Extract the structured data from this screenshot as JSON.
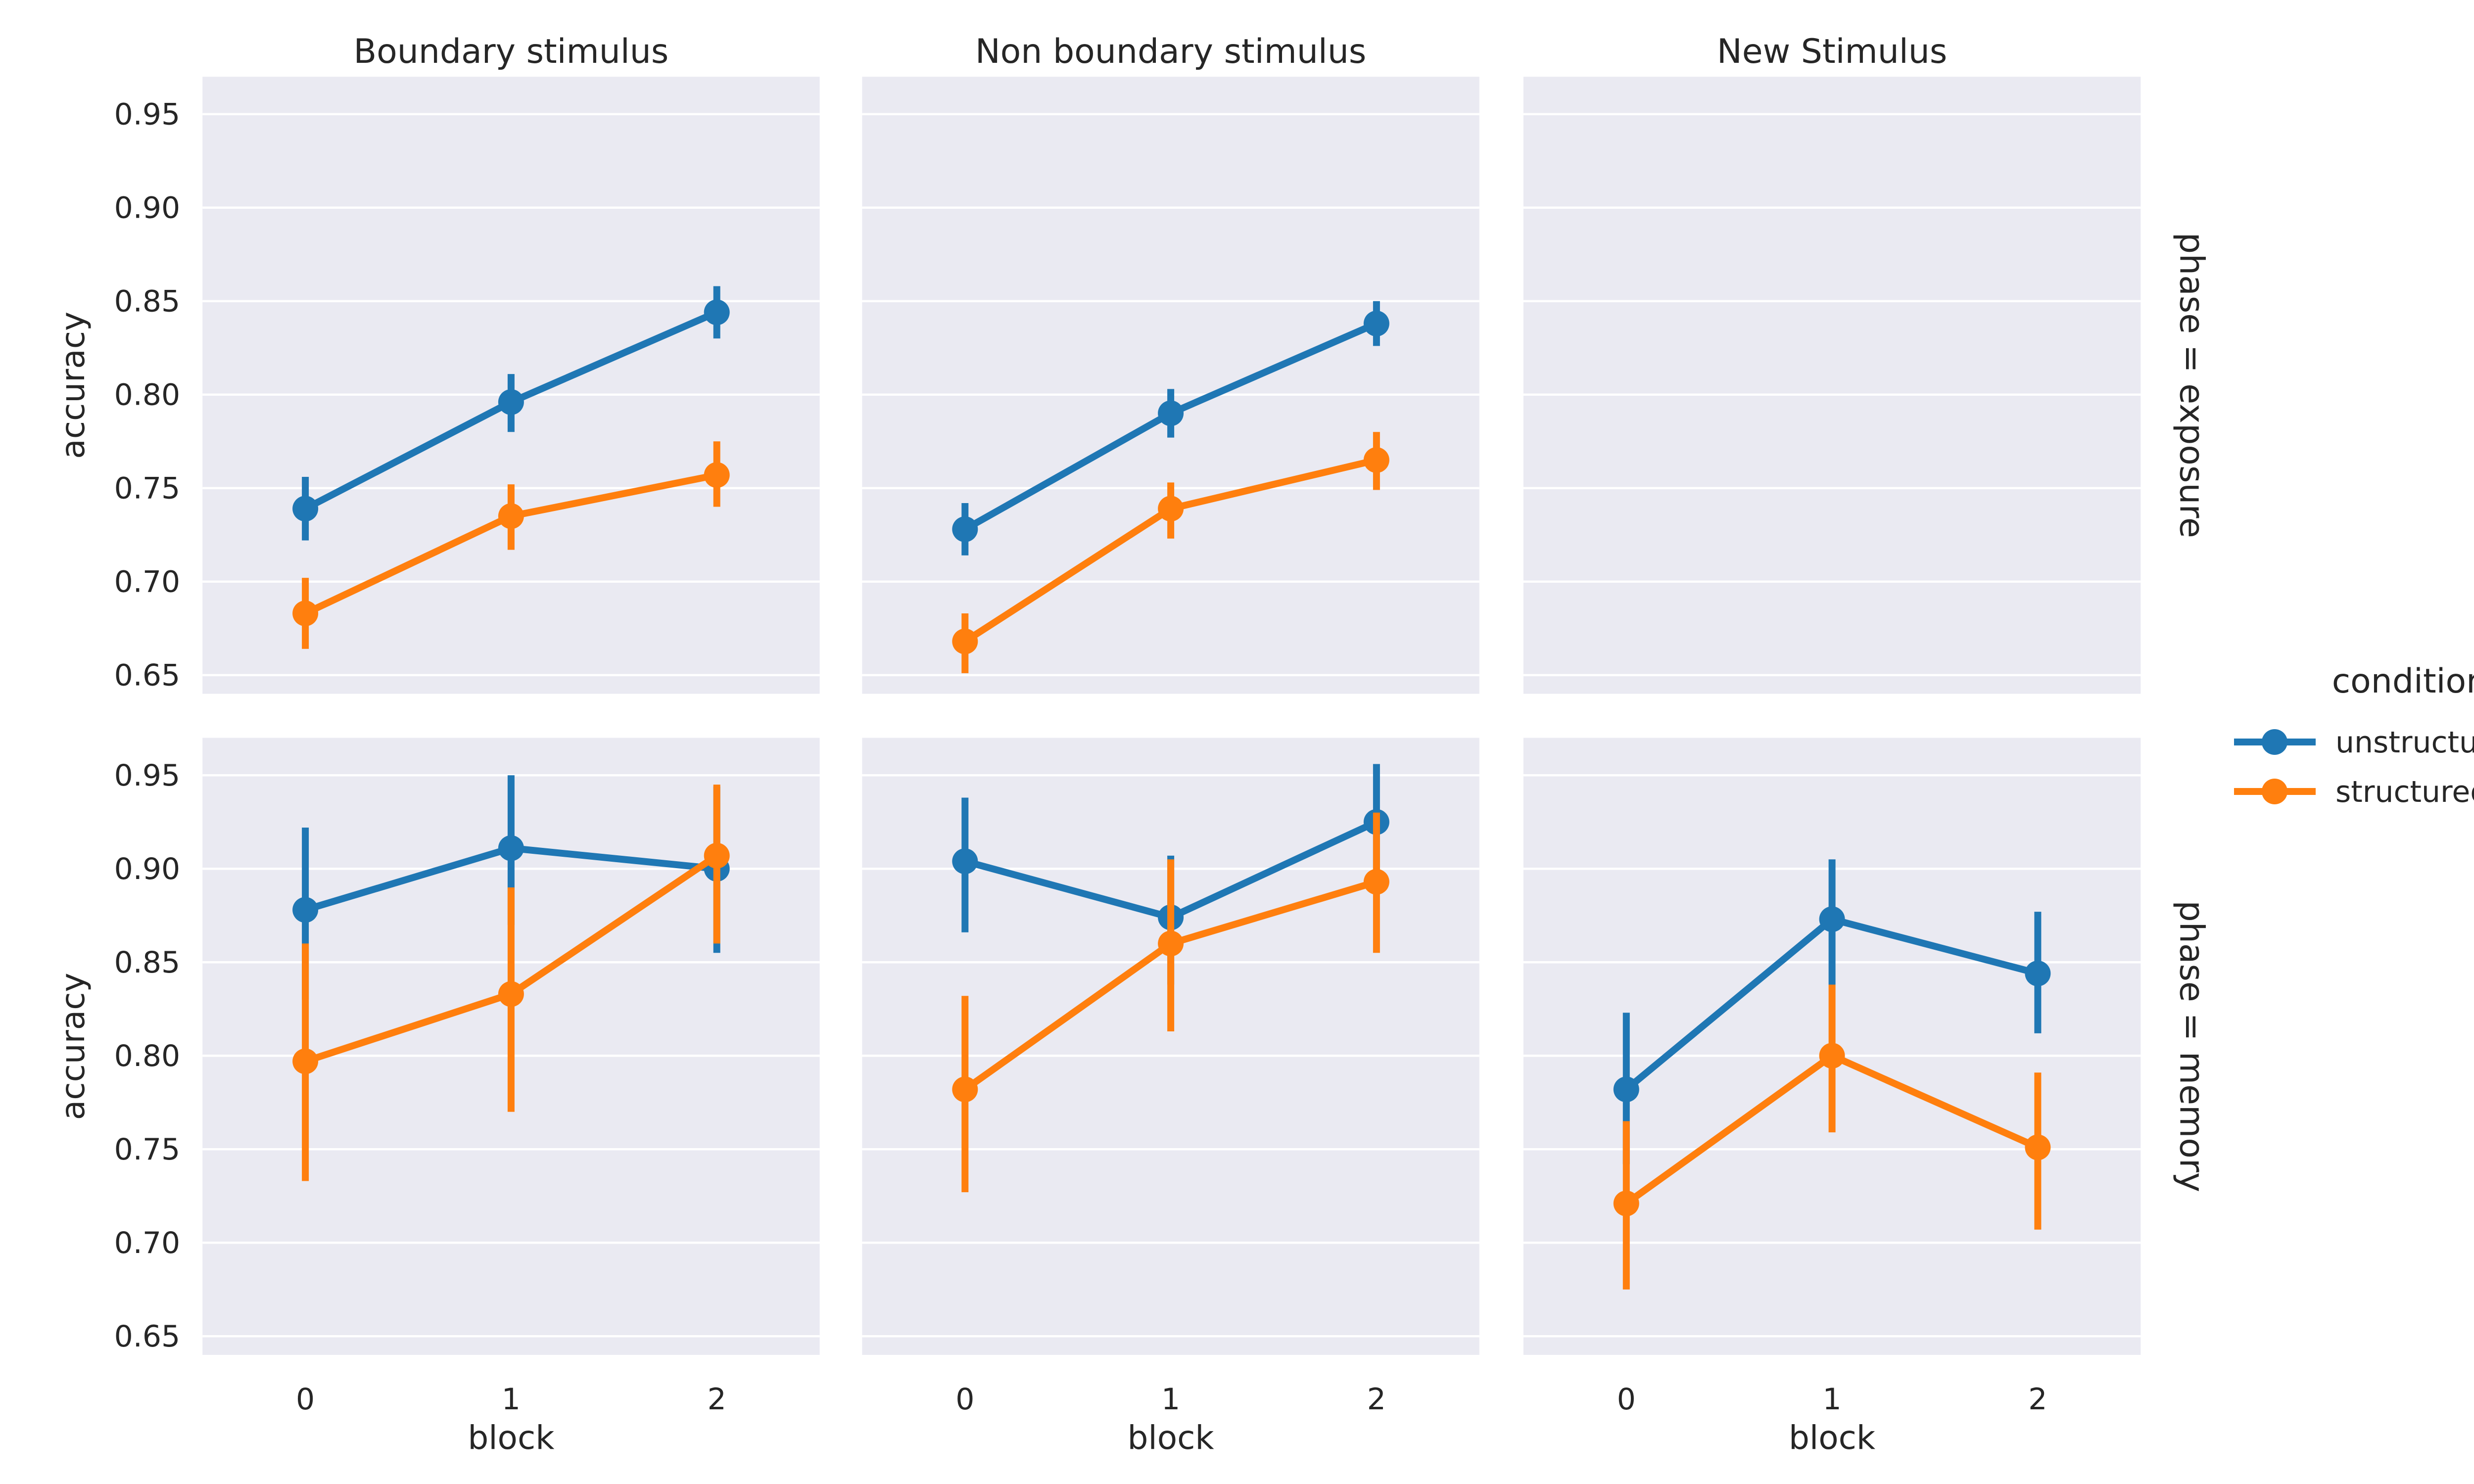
{
  "chart_data": {
    "type": "line",
    "x": [
      0,
      1,
      2
    ],
    "xlabel": "block",
    "ylabel": "accuracy",
    "ylim": [
      0.64,
      0.97
    ],
    "yticks": [
      0.65,
      0.7,
      0.75,
      0.8,
      0.85,
      0.9,
      0.95
    ],
    "ytick_labels": [
      "0.65",
      "0.70",
      "0.75",
      "0.80",
      "0.85",
      "0.90",
      "0.95"
    ],
    "xtick_labels": [
      "0",
      "1",
      "2"
    ],
    "grid": true,
    "col_titles": [
      "Boundary stimulus",
      "Non boundary stimulus",
      "New Stimulus"
    ],
    "row_titles": [
      "phase = exposure",
      "phase = memory"
    ],
    "legend": {
      "title": "condition",
      "placement": "right",
      "entries": [
        {
          "name": "unstructured",
          "color": "#1f77b4"
        },
        {
          "name": "structured",
          "color": "#ff7f0e"
        }
      ]
    },
    "facets": [
      {
        "row": 0,
        "col": 0,
        "series": [
          {
            "name": "unstructured",
            "values": [
              0.739,
              0.796,
              0.844
            ],
            "ci_low": [
              0.722,
              0.78,
              0.83
            ],
            "ci_high": [
              0.756,
              0.811,
              0.858
            ]
          },
          {
            "name": "structured",
            "values": [
              0.683,
              0.735,
              0.757
            ],
            "ci_low": [
              0.664,
              0.717,
              0.74
            ],
            "ci_high": [
              0.702,
              0.752,
              0.775
            ]
          }
        ]
      },
      {
        "row": 0,
        "col": 1,
        "series": [
          {
            "name": "unstructured",
            "values": [
              0.728,
              0.79,
              0.838
            ],
            "ci_low": [
              0.714,
              0.777,
              0.826
            ],
            "ci_high": [
              0.742,
              0.803,
              0.85
            ]
          },
          {
            "name": "structured",
            "values": [
              0.668,
              0.739,
              0.765
            ],
            "ci_low": [
              0.651,
              0.723,
              0.749
            ],
            "ci_high": [
              0.683,
              0.753,
              0.78
            ]
          }
        ]
      },
      {
        "row": 0,
        "col": 2,
        "series": []
      },
      {
        "row": 1,
        "col": 0,
        "series": [
          {
            "name": "unstructured",
            "values": [
              0.878,
              0.911,
              0.9
            ],
            "ci_low": [
              0.83,
              0.87,
              0.855
            ],
            "ci_high": [
              0.922,
              0.95,
              0.944
            ]
          },
          {
            "name": "structured",
            "values": [
              0.797,
              0.833,
              0.907
            ],
            "ci_low": [
              0.733,
              0.77,
              0.86
            ],
            "ci_high": [
              0.86,
              0.89,
              0.945
            ]
          }
        ]
      },
      {
        "row": 1,
        "col": 1,
        "series": [
          {
            "name": "unstructured",
            "values": [
              0.904,
              0.874,
              0.925
            ],
            "ci_low": [
              0.866,
              0.838,
              0.893
            ],
            "ci_high": [
              0.938,
              0.907,
              0.956
            ]
          },
          {
            "name": "structured",
            "values": [
              0.782,
              0.86,
              0.893
            ],
            "ci_low": [
              0.727,
              0.813,
              0.855
            ],
            "ci_high": [
              0.832,
              0.905,
              0.93
            ]
          }
        ]
      },
      {
        "row": 1,
        "col": 2,
        "series": [
          {
            "name": "unstructured",
            "values": [
              0.782,
              0.873,
              0.844
            ],
            "ci_low": [
              0.742,
              0.838,
              0.812
            ],
            "ci_high": [
              0.823,
              0.905,
              0.877
            ]
          },
          {
            "name": "structured",
            "values": [
              0.721,
              0.8,
              0.751
            ],
            "ci_low": [
              0.675,
              0.759,
              0.707
            ],
            "ci_high": [
              0.765,
              0.838,
              0.791
            ]
          }
        ]
      }
    ]
  }
}
